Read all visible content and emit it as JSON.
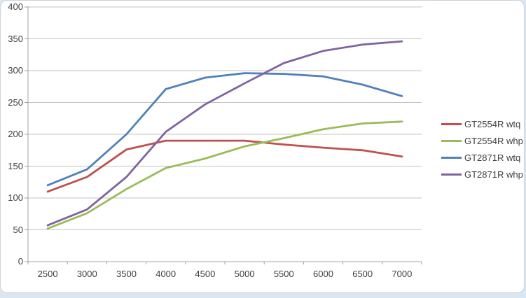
{
  "chart_data": {
    "type": "line",
    "title": "",
    "xlabel": "",
    "ylabel": "",
    "x": [
      2500,
      3000,
      3500,
      4000,
      4500,
      5000,
      5500,
      6000,
      6500,
      7000
    ],
    "series": [
      {
        "name": "GT2554R wtq",
        "color": "#C0504D",
        "values": [
          110,
          133,
          176,
          190,
          190,
          190,
          184,
          179,
          175,
          165
        ]
      },
      {
        "name": "GT2554R whp",
        "color": "#9BBB59",
        "values": [
          52,
          76,
          114,
          147,
          162,
          181,
          194,
          208,
          217,
          220
        ]
      },
      {
        "name": "GT2871R wtq",
        "color": "#4F81BD",
        "values": [
          120,
          145,
          200,
          271,
          289,
          296,
          295,
          291,
          278,
          260
        ]
      },
      {
        "name": "GT2871R whp",
        "color": "#8064A2",
        "values": [
          57,
          82,
          133,
          204,
          247,
          280,
          312,
          331,
          341,
          346
        ]
      }
    ],
    "ylim": [
      0,
      400
    ],
    "ytick_step": 50,
    "yticks": [
      0,
      50,
      100,
      150,
      200,
      250,
      300,
      350,
      400
    ],
    "grid": true,
    "legend_position": "right"
  },
  "style_colors": {
    "grid": "#c3c3c3",
    "axis": "#9fa4a9",
    "tick": "#9fa4a9",
    "text": "#3f3f3f",
    "chart_background": "#ffffff",
    "page_background": "#dce6f1",
    "chart_border": "#c9d3dd"
  }
}
